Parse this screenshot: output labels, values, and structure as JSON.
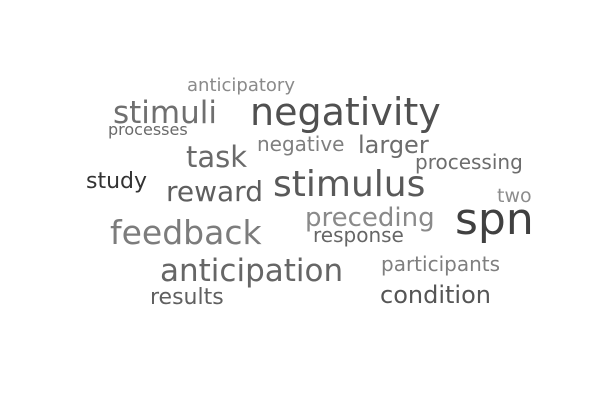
{
  "words": {
    "anticipatory": "anticipatory",
    "stimuli": "stimuli",
    "negativity": "negativity",
    "processes": "processes",
    "negative": "negative",
    "larger": "larger",
    "task": "task",
    "processing": "processing",
    "study": "study",
    "stimulus": "stimulus",
    "reward": "reward",
    "two": "two",
    "preceding": "preceding",
    "spn": "spn",
    "feedback": "feedback",
    "response": "response",
    "anticipation": "anticipation",
    "participants": "participants",
    "condition": "condition",
    "results": "results"
  }
}
